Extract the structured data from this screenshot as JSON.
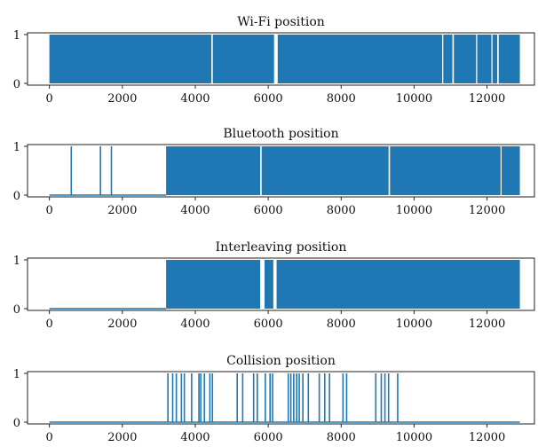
{
  "chart_data": [
    {
      "type": "line",
      "title": "Wi-Fi position",
      "xlim": [
        -600,
        13300
      ],
      "ylim": [
        0,
        1
      ],
      "xticks": [
        0,
        2000,
        4000,
        6000,
        8000,
        10000,
        12000
      ],
      "yticks": [
        0,
        1
      ],
      "baseline_until": 0,
      "on_intervals": [
        [
          0,
          4440
        ],
        [
          4480,
          6160
        ],
        [
          6260,
          10770
        ],
        [
          10800,
          11050
        ],
        [
          11090,
          11700
        ],
        [
          11730,
          12120
        ],
        [
          12150,
          12280
        ],
        [
          12320,
          12900
        ]
      ],
      "spikes": [],
      "grid": false,
      "color": "#1f77b4"
    },
    {
      "type": "line",
      "title": "Bluetooth position",
      "xlim": [
        -600,
        13300
      ],
      "ylim": [
        0,
        1
      ],
      "xticks": [
        0,
        2000,
        4000,
        6000,
        8000,
        10000,
        12000
      ],
      "yticks": [
        0,
        1
      ],
      "baseline_until": 3200,
      "on_intervals": [
        [
          3200,
          5780
        ],
        [
          5820,
          9300
        ],
        [
          9340,
          12370
        ],
        [
          12400,
          12900
        ]
      ],
      "spikes": [
        600,
        1400,
        1700
      ],
      "grid": false,
      "color": "#1f77b4"
    },
    {
      "type": "line",
      "title": "Interleaving position",
      "xlim": [
        -600,
        13300
      ],
      "ylim": [
        0,
        1
      ],
      "xticks": [
        0,
        2000,
        4000,
        6000,
        8000,
        10000,
        12000
      ],
      "yticks": [
        0,
        1
      ],
      "baseline_until": 3200,
      "on_intervals": [
        [
          3200,
          5780
        ],
        [
          5900,
          6140
        ],
        [
          6230,
          12900
        ]
      ],
      "spikes": [],
      "grid": false,
      "color": "#1f77b4"
    },
    {
      "type": "line",
      "title": "Collision position",
      "xlim": [
        -600,
        13300
      ],
      "ylim": [
        0,
        1
      ],
      "xticks": [
        0,
        2000,
        4000,
        6000,
        8000,
        10000,
        12000
      ],
      "yticks": [
        0,
        1
      ],
      "baseline_until": 12900,
      "on_intervals": [],
      "spikes": [
        3250,
        3380,
        3480,
        3620,
        3700,
        3900,
        4100,
        4150,
        4250,
        4400,
        4470,
        5150,
        5300,
        5600,
        5700,
        5920,
        6050,
        6120,
        6550,
        6620,
        6700,
        6780,
        6850,
        6950,
        7100,
        7400,
        7550,
        7680,
        8050,
        8150,
        8950,
        9100,
        9200,
        9300,
        9550
      ],
      "grid": false,
      "color": "#1f77b4"
    }
  ]
}
